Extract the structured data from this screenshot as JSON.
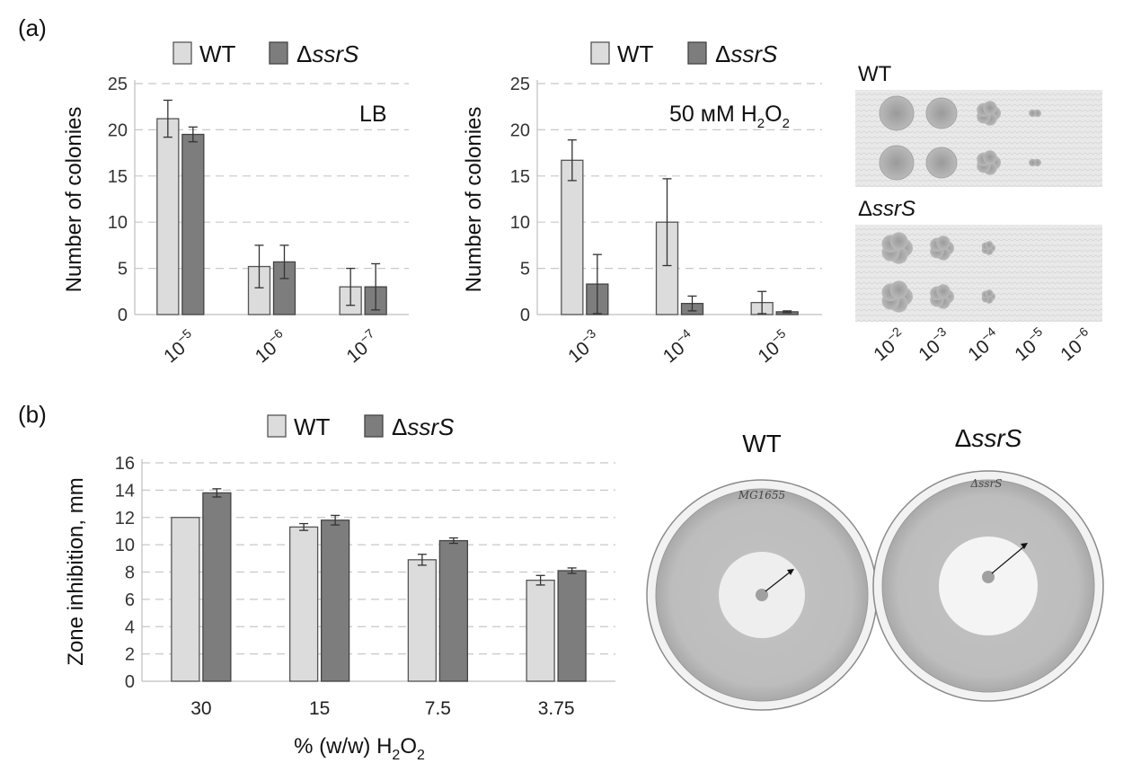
{
  "figure": {
    "panel_a_label": "(a)",
    "panel_b_label": "(b)"
  },
  "colors": {
    "wt": "#dcdcdc",
    "mutant": "#7d7d7d"
  },
  "legend": {
    "wt": "WT",
    "delta": "Δ",
    "mutant_gene": "ssrS"
  },
  "spot_assay": {
    "wt_label": "WT",
    "mutant_delta": "Δ",
    "mutant_gene": "ssrS",
    "dilution_labels": [
      "10",
      "10",
      "10",
      "10",
      "10"
    ],
    "dilution_exponents": [
      "−2",
      "−3",
      "−4",
      "−5",
      "−6"
    ]
  },
  "plates": {
    "wt_title": "WT",
    "mutant_delta": "Δ",
    "mutant_gene": "ssrS",
    "wt_handwriting": "MG1655",
    "mutant_handwriting": "ΔssrS"
  },
  "chart_data": [
    {
      "type": "bar",
      "id": "a-left",
      "condition_label": "LB",
      "ylabel": "Number of colonies",
      "ylim": [
        0,
        25
      ],
      "yticks": [
        "0",
        "5",
        "10",
        "15",
        "20",
        "25"
      ],
      "categories": [
        "10",
        "10",
        "10"
      ],
      "category_exponents": [
        "−5",
        "−6",
        "−7"
      ],
      "series": [
        {
          "name": "WT",
          "values": [
            21.2,
            5.2,
            3.0
          ],
          "errors": [
            2.0,
            2.3,
            2.0
          ]
        },
        {
          "name": "ΔssrS",
          "values": [
            19.5,
            5.7,
            3.0
          ],
          "errors": [
            0.8,
            1.8,
            2.5
          ]
        }
      ]
    },
    {
      "type": "bar",
      "id": "a-middle",
      "condition_label": "50 мМ H",
      "condition_sub": "2",
      "condition_end": "O",
      "condition_sub2": "2",
      "ylabel": "Number of colonies",
      "ylim": [
        0,
        25
      ],
      "yticks": [
        "0",
        "5",
        "10",
        "15",
        "20",
        "25"
      ],
      "categories": [
        "10",
        "10",
        "10"
      ],
      "category_exponents": [
        "−3",
        "−4",
        "−5"
      ],
      "series": [
        {
          "name": "WT",
          "values": [
            16.7,
            10.0,
            1.3
          ],
          "errors": [
            2.2,
            4.7,
            1.2
          ]
        },
        {
          "name": "ΔssrS",
          "values": [
            3.3,
            1.2,
            0.3
          ],
          "errors": [
            3.2,
            0.8,
            0.1
          ]
        }
      ]
    },
    {
      "type": "bar",
      "id": "b",
      "ylabel": "Zone inhibition, mm",
      "xlabel": "% (w/w) H",
      "xlabel_sub": "2",
      "xlabel_end": "O",
      "xlabel_sub2": "2",
      "ylim": [
        0,
        16
      ],
      "yticks": [
        "0",
        "2",
        "4",
        "6",
        "8",
        "10",
        "12",
        "14",
        "16"
      ],
      "categories": [
        "30",
        "15",
        "7.5",
        "3.75"
      ],
      "series": [
        {
          "name": "WT",
          "values": [
            12.0,
            11.3,
            8.9,
            7.4
          ],
          "errors": [
            0.0,
            0.25,
            0.4,
            0.35
          ]
        },
        {
          "name": "ΔssrS",
          "values": [
            13.8,
            11.8,
            10.3,
            8.1
          ],
          "errors": [
            0.3,
            0.35,
            0.2,
            0.2
          ]
        }
      ]
    }
  ]
}
